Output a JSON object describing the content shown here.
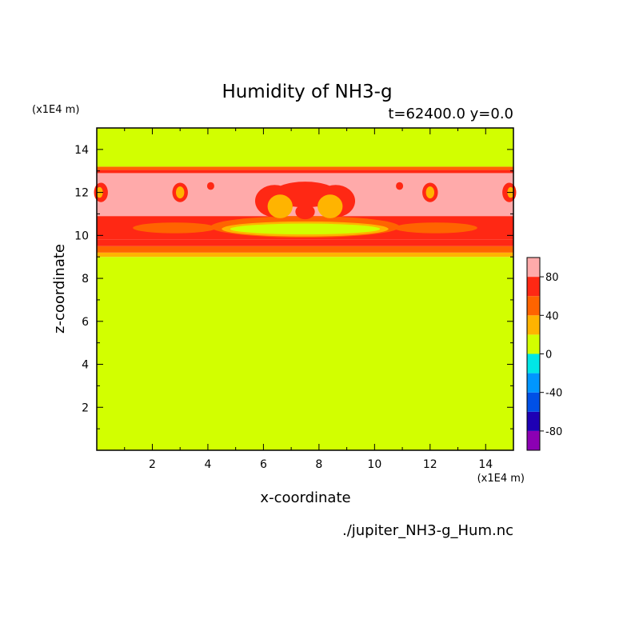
{
  "chart_data": {
    "type": "heatmap",
    "title": "Humidity of NH3-g",
    "subtitle": "t=62400.0 y=0.0",
    "xlabel": "x-coordinate",
    "ylabel": "z-coordinate",
    "x_unit": "(x1E4 m)",
    "y_unit": "(x1E4 m)",
    "xlim": [
      0,
      15
    ],
    "ylim": [
      0,
      15
    ],
    "x_ticks": [
      2,
      4,
      6,
      8,
      10,
      12,
      14
    ],
    "y_ticks": [
      2,
      4,
      6,
      8,
      10,
      12,
      14
    ],
    "footer": "./jupiter_NH3-g_Hum.nc",
    "colorbar": {
      "min": -100,
      "max": 100,
      "step": 20,
      "tick_labels": [
        "80",
        "40",
        "0",
        "-40",
        "-80"
      ],
      "tick_values": [
        80,
        40,
        0,
        -40,
        -80
      ],
      "levels": [
        {
          "from": -100,
          "to": -80,
          "color": "#8c00b4"
        },
        {
          "from": -80,
          "to": -60,
          "color": "#1e00b4"
        },
        {
          "from": -60,
          "to": -40,
          "color": "#0050e6"
        },
        {
          "from": -40,
          "to": -20,
          "color": "#0096ff"
        },
        {
          "from": -20,
          "to": 0,
          "color": "#00e6e6"
        },
        {
          "from": 0,
          "to": 20,
          "color": "#d2ff00"
        },
        {
          "from": 20,
          "to": 40,
          "color": "#ffb400"
        },
        {
          "from": 40,
          "to": 60,
          "color": "#ff6400"
        },
        {
          "from": 60,
          "to": 80,
          "color": "#ff2814"
        },
        {
          "from": 80,
          "to": 100,
          "color": "#ffaaaa"
        }
      ]
    },
    "field_bands": [
      {
        "z_from": 0,
        "z_to": 9.0,
        "value": 10
      },
      {
        "z_from": 9.0,
        "z_to": 9.2,
        "value": 30
      },
      {
        "z_from": 9.2,
        "z_to": 9.5,
        "value": 50
      },
      {
        "z_from": 9.5,
        "z_to": 9.8,
        "value": 70
      },
      {
        "z_from": 9.8,
        "z_to": 10.9,
        "value": 70
      },
      {
        "z_from": 10.9,
        "z_to": 12.9,
        "value": 90
      },
      {
        "z_from": 12.9,
        "z_to": 13.05,
        "value": 70
      },
      {
        "z_from": 13.05,
        "z_to": 13.2,
        "value": 50
      },
      {
        "z_from": 13.2,
        "z_to": 15,
        "value": 10
      }
    ],
    "field_blobs": [
      {
        "x": 7.5,
        "z": 10.4,
        "rx": 3.4,
        "rz": 0.5,
        "value": 50
      },
      {
        "x": 7.5,
        "z": 10.3,
        "rx": 3.0,
        "rz": 0.35,
        "value": 30
      },
      {
        "x": 7.5,
        "z": 10.3,
        "rx": 2.7,
        "rz": 0.25,
        "value": 10
      },
      {
        "x": 2.8,
        "z": 10.35,
        "rx": 1.5,
        "rz": 0.25,
        "value": 50
      },
      {
        "x": 12.2,
        "z": 10.35,
        "rx": 1.5,
        "rz": 0.25,
        "value": 50
      },
      {
        "x": 7.5,
        "z": 11.9,
        "rx": 1.2,
        "rz": 0.6,
        "value": 70
      },
      {
        "x": 6.4,
        "z": 11.6,
        "rx": 0.7,
        "rz": 0.75,
        "value": 70
      },
      {
        "x": 8.6,
        "z": 11.6,
        "rx": 0.7,
        "rz": 0.75,
        "value": 70
      },
      {
        "x": 6.6,
        "z": 11.35,
        "rx": 0.45,
        "rz": 0.55,
        "value": 30
      },
      {
        "x": 8.4,
        "z": 11.35,
        "rx": 0.45,
        "rz": 0.55,
        "value": 30
      },
      {
        "x": 7.5,
        "z": 11.1,
        "rx": 0.35,
        "rz": 0.35,
        "value": 70
      },
      {
        "x": 3.0,
        "z": 12.0,
        "rx": 0.28,
        "rz": 0.45,
        "value": 70
      },
      {
        "x": 3.0,
        "z": 12.0,
        "rx": 0.15,
        "rz": 0.28,
        "value": 30
      },
      {
        "x": 12.0,
        "z": 12.0,
        "rx": 0.28,
        "rz": 0.45,
        "value": 70
      },
      {
        "x": 12.0,
        "z": 12.0,
        "rx": 0.15,
        "rz": 0.28,
        "value": 30
      },
      {
        "x": 0.15,
        "z": 12.0,
        "rx": 0.25,
        "rz": 0.45,
        "value": 70
      },
      {
        "x": 0.1,
        "z": 12.0,
        "rx": 0.12,
        "rz": 0.25,
        "value": 30
      },
      {
        "x": 14.85,
        "z": 12.0,
        "rx": 0.25,
        "rz": 0.45,
        "value": 70
      },
      {
        "x": 14.9,
        "z": 12.0,
        "rx": 0.12,
        "rz": 0.25,
        "value": 30
      },
      {
        "x": 4.1,
        "z": 12.3,
        "rx": 0.13,
        "rz": 0.18,
        "value": 70
      },
      {
        "x": 10.9,
        "z": 12.3,
        "rx": 0.13,
        "rz": 0.18,
        "value": 70
      }
    ]
  }
}
